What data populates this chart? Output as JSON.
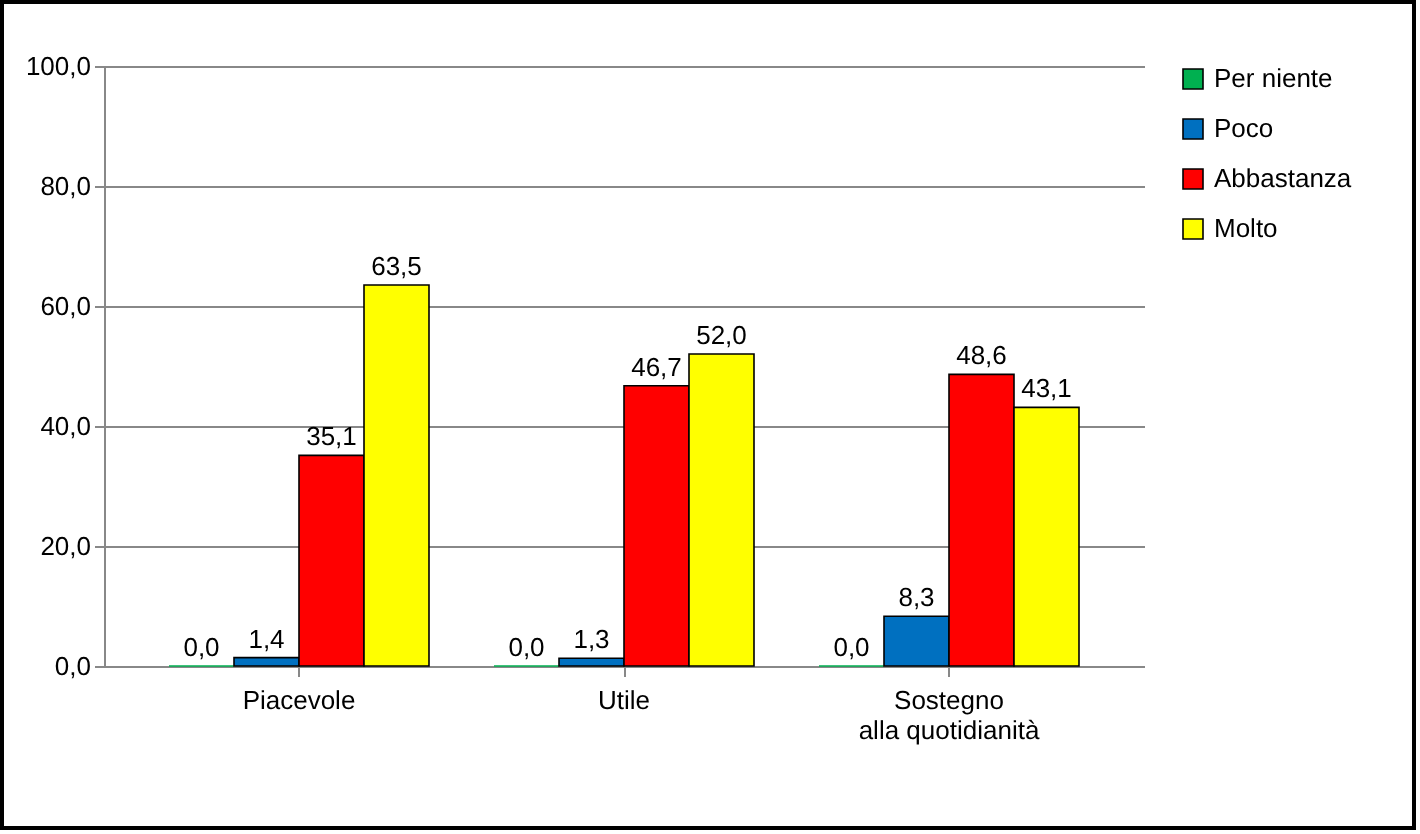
{
  "chart_data": {
    "type": "bar",
    "categories": [
      "Piacevole",
      "Utile",
      "Sostegno\nalla quotidianità"
    ],
    "series": [
      {
        "name": "Per niente",
        "color": "#00b050",
        "values": [
          0,
          0,
          0
        ],
        "value_labels": [
          "0,0",
          "0,0",
          "0,0"
        ]
      },
      {
        "name": "Poco",
        "color": "#0070c0",
        "values": [
          1.4,
          1.3,
          8.3
        ],
        "value_labels": [
          "1,4",
          "1,3",
          "8,3"
        ]
      },
      {
        "name": "Abbastanza",
        "color": "#ff0000",
        "values": [
          35.1,
          46.7,
          48.6
        ],
        "value_labels": [
          "35,1",
          "46,7",
          "48,6"
        ]
      },
      {
        "name": "Molto",
        "color": "#ffff00",
        "values": [
          63.5,
          52.0,
          43.1
        ],
        "value_labels": [
          "63,5",
          "52,0",
          "43,1"
        ]
      }
    ],
    "ylim": [
      0,
      100
    ],
    "yticks": [
      {
        "value": 0,
        "label": "0,0"
      },
      {
        "value": 20,
        "label": "20,0"
      },
      {
        "value": 40,
        "label": "40,0"
      },
      {
        "value": 60,
        "label": "60,0"
      },
      {
        "value": 80,
        "label": "80,0"
      },
      {
        "value": 100,
        "label": "100,0"
      }
    ],
    "grid": "y",
    "legend": "right"
  }
}
